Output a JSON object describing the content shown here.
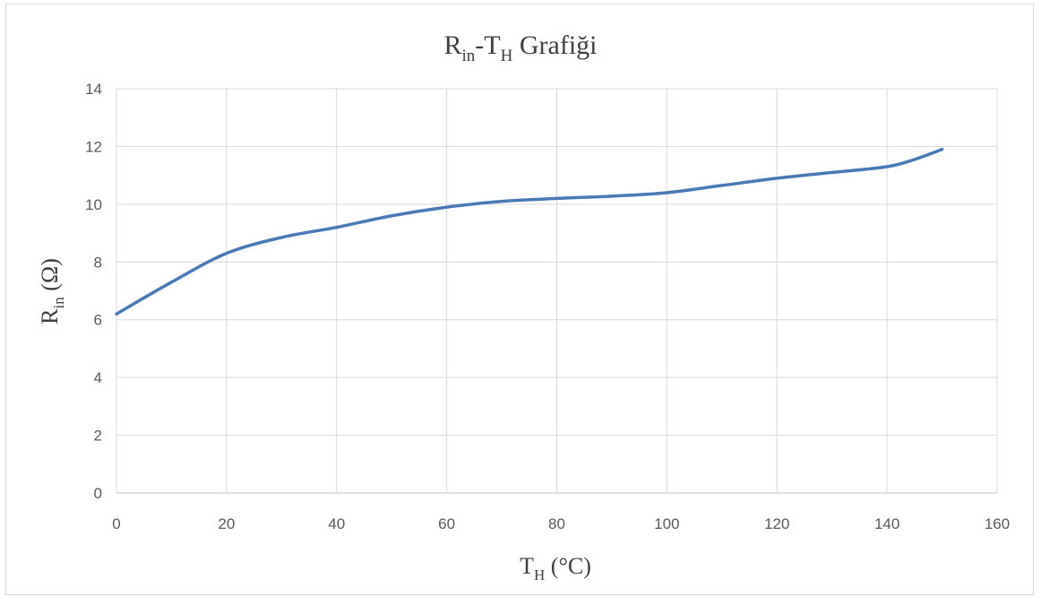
{
  "chart_data": {
    "type": "line",
    "title": {
      "main": "R",
      "sub1": "in",
      "mid": "-T",
      "sub2": "H",
      "rest": " Grafiği"
    },
    "xlabel": {
      "main": "T",
      "sub": "H",
      "rest": " (°C)"
    },
    "ylabel": {
      "main": "R",
      "sub": "in",
      "rest": " (Ω)"
    },
    "xlim": [
      0,
      160
    ],
    "ylim": [
      0,
      14
    ],
    "xticks": [
      0,
      20,
      40,
      60,
      80,
      100,
      120,
      140,
      160
    ],
    "yticks": [
      0,
      2,
      4,
      6,
      8,
      10,
      12,
      14
    ],
    "grid": true,
    "series": [
      {
        "color": "#4a7ab5",
        "x": [
          0,
          10,
          20,
          30,
          40,
          50,
          60,
          70,
          80,
          90,
          100,
          110,
          120,
          130,
          140,
          145,
          150
        ],
        "y": [
          6.2,
          7.3,
          8.3,
          8.85,
          9.2,
          9.6,
          9.9,
          10.1,
          10.2,
          10.28,
          10.4,
          10.65,
          10.9,
          11.1,
          11.3,
          11.55,
          11.9
        ]
      }
    ]
  }
}
